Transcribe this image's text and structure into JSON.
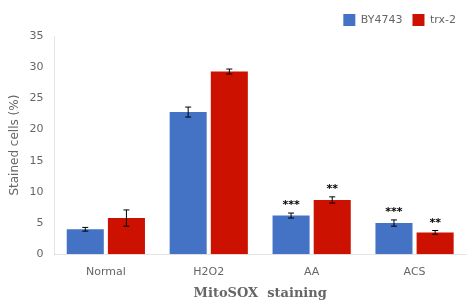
{
  "chart_data": {
    "type": "bar",
    "categories": [
      "Normal",
      "H2O2",
      "AA",
      "ACS"
    ],
    "series": [
      {
        "name": "BY4743",
        "color": "#4472c4",
        "values": [
          4.0,
          22.8,
          6.2,
          5.0
        ],
        "errors": [
          0.3,
          0.8,
          0.4,
          0.5
        ],
        "annotations": [
          null,
          null,
          "***",
          "***"
        ]
      },
      {
        "name": "trx-2",
        "color": "#cc1100",
        "values": [
          5.8,
          29.3,
          8.7,
          3.5
        ],
        "errors": [
          1.3,
          0.4,
          0.5,
          0.3
        ],
        "annotations": [
          null,
          null,
          "**",
          "**"
        ]
      }
    ],
    "ylim": [
      0,
      35
    ],
    "yticks": [
      0,
      5,
      10,
      15,
      20,
      25,
      30,
      35
    ],
    "ylabel": "Stained cells (%)",
    "xlabel": "MitoSOX  staining",
    "legend": "upper right",
    "grid": false
  }
}
